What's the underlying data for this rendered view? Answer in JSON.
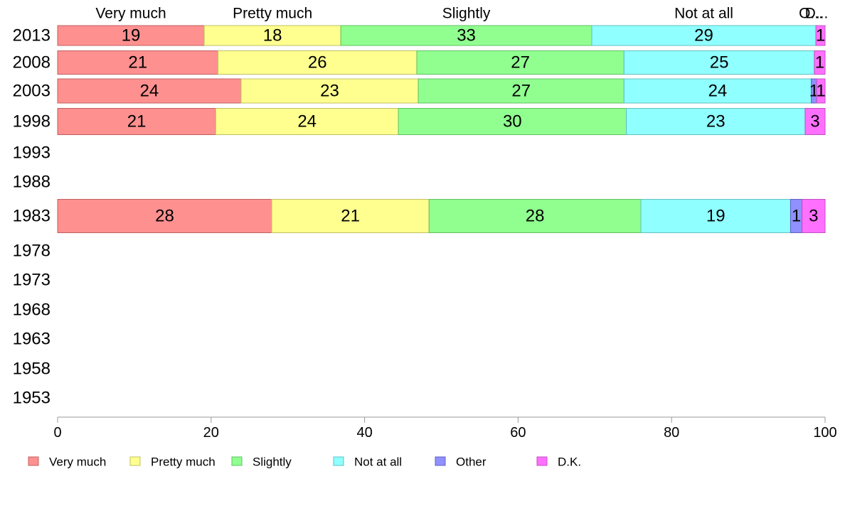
{
  "chart_data": {
    "type": "bar",
    "orientation": "horizontal",
    "stacked": true,
    "xlim": [
      0,
      100
    ],
    "x_ticks": [
      0,
      20,
      40,
      60,
      80,
      100
    ],
    "categories": [
      "2013",
      "2008",
      "2003",
      "1998",
      "1993",
      "1988",
      "1983",
      "1978",
      "1973",
      "1968",
      "1963",
      "1958",
      "1953"
    ],
    "column_headers": [
      "Very much",
      "Pretty much",
      "Slightly",
      "Not at all",
      "O...",
      "D..."
    ],
    "legend_position": "bottom",
    "grid": false,
    "series": [
      {
        "name": "Very much",
        "color": "#ff9090",
        "border": "#c06060",
        "values": [
          19.1,
          20.9,
          23.9,
          20.6,
          null,
          null,
          27.9,
          null,
          null,
          null,
          null,
          null,
          null
        ]
      },
      {
        "name": "Pretty much",
        "color": "#ffff90",
        "border": "#c0c060",
        "values": [
          17.8,
          25.9,
          23.1,
          23.8,
          null,
          null,
          20.5,
          null,
          null,
          null,
          null,
          null,
          null
        ]
      },
      {
        "name": "Slightly",
        "color": "#90ff90",
        "border": "#60c060",
        "values": [
          32.7,
          27.0,
          26.8,
          29.7,
          null,
          null,
          27.6,
          null,
          null,
          null,
          null,
          null,
          null
        ]
      },
      {
        "name": "Not at all",
        "color": "#90ffff",
        "border": "#60c0c0",
        "values": [
          29.2,
          24.8,
          24.4,
          23.3,
          null,
          null,
          19.5,
          null,
          null,
          null,
          null,
          null,
          null
        ]
      },
      {
        "name": "Other",
        "color": "#9090ff",
        "border": "#6060c0",
        "values": [
          0.0,
          0.0,
          0.7,
          0.0,
          null,
          null,
          1.5,
          null,
          null,
          null,
          null,
          null,
          null
        ]
      },
      {
        "name": "D.K.",
        "color": "#ff70ff",
        "border": "#c050c0",
        "values": [
          1.2,
          1.4,
          1.1,
          2.6,
          null,
          null,
          3.0,
          null,
          null,
          null,
          null,
          null,
          null
        ]
      }
    ],
    "data_labels": [
      [
        "19",
        "18",
        "33",
        "29",
        "",
        "1"
      ],
      [
        "21",
        "26",
        "27",
        "25",
        "",
        "1"
      ],
      [
        "24",
        "23",
        "27",
        "24",
        "1",
        "1"
      ],
      [
        "21",
        "24",
        "30",
        "23",
        "",
        "3"
      ],
      [],
      [],
      [
        "28",
        "21",
        "28",
        "19",
        "1",
        "3"
      ],
      [],
      [],
      [],
      [],
      [],
      []
    ]
  }
}
